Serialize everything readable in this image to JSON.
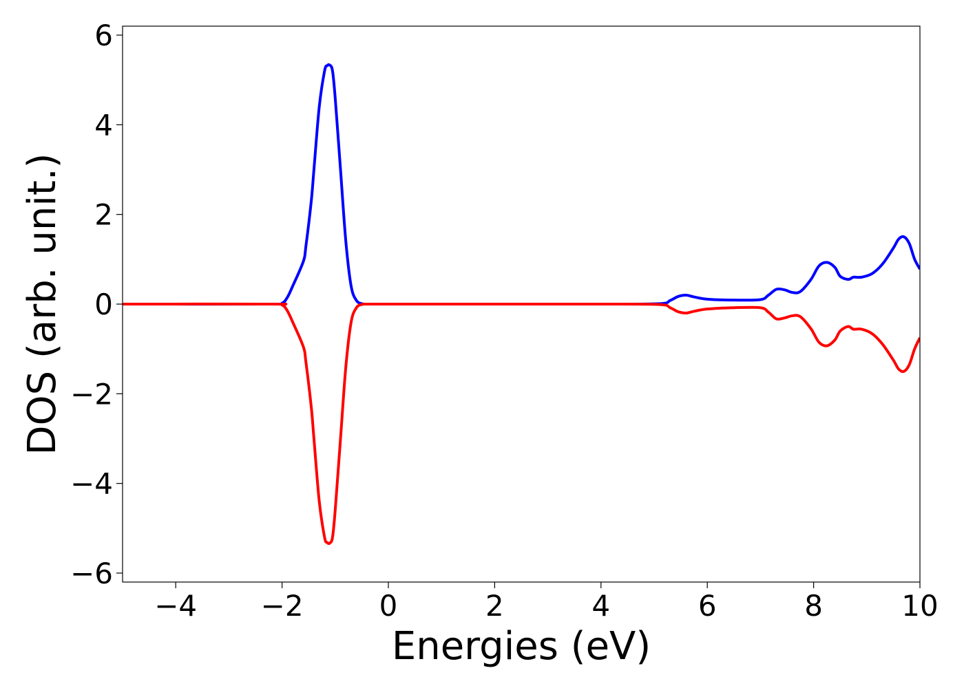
{
  "chart_data": {
    "type": "line",
    "title": "",
    "xlabel": "Energies (eV)",
    "ylabel": "DOS (arb. unit.)",
    "xlim": [
      -5,
      10
    ],
    "ylim": [
      -6.2,
      6.2
    ],
    "xticks": [
      -4,
      -2,
      0,
      2,
      4,
      6,
      8,
      10
    ],
    "yticks": [
      -6,
      -4,
      -2,
      0,
      2,
      4,
      6
    ],
    "xtick_labels": [
      "−4",
      "−2",
      "0",
      "2",
      "4",
      "6",
      "8",
      "10"
    ],
    "ytick_labels": [
      "−6",
      "−4",
      "−2",
      "0",
      "2",
      "4",
      "6"
    ],
    "grid": false,
    "legend": "none",
    "series": [
      {
        "color": "#0000ff",
        "x": [
          -5,
          -2.2,
          -2.0,
          -1.9,
          -1.8,
          -1.6,
          -1.55,
          -1.45,
          -1.4,
          -1.3,
          -1.2,
          -1.15,
          -1.1,
          -1.05,
          -1.0,
          -0.9,
          -0.8,
          -0.7,
          -0.6,
          -0.5,
          -0.4,
          0,
          2,
          4,
          5.1,
          5.3,
          5.45,
          5.6,
          5.75,
          6.0,
          6.5,
          7.0,
          7.15,
          7.3,
          7.45,
          7.6,
          7.75,
          7.95,
          8.1,
          8.25,
          8.4,
          8.5,
          8.65,
          8.75,
          8.9,
          9.1,
          9.3,
          9.5,
          9.6,
          9.7,
          9.8,
          9.9,
          10.0
        ],
        "y": [
          0,
          0,
          0.02,
          0.15,
          0.4,
          0.95,
          1.3,
          2.3,
          3.0,
          4.4,
          5.2,
          5.32,
          5.33,
          5.2,
          4.6,
          3.0,
          1.4,
          0.4,
          0.08,
          0.01,
          0,
          0,
          0,
          0,
          0.01,
          0.08,
          0.17,
          0.2,
          0.16,
          0.11,
          0.09,
          0.1,
          0.2,
          0.33,
          0.32,
          0.26,
          0.28,
          0.55,
          0.85,
          0.93,
          0.82,
          0.62,
          0.55,
          0.6,
          0.6,
          0.68,
          0.9,
          1.25,
          1.45,
          1.5,
          1.35,
          1.0,
          0.78
        ]
      },
      {
        "color": "#ff0000",
        "x": [
          -5,
          -2.2,
          -2.0,
          -1.9,
          -1.8,
          -1.6,
          -1.55,
          -1.45,
          -1.4,
          -1.3,
          -1.2,
          -1.15,
          -1.1,
          -1.05,
          -1.0,
          -0.9,
          -0.8,
          -0.7,
          -0.6,
          -0.5,
          -0.4,
          0,
          2,
          4,
          5.1,
          5.3,
          5.45,
          5.6,
          5.75,
          6.0,
          6.5,
          7.0,
          7.15,
          7.3,
          7.45,
          7.6,
          7.75,
          7.95,
          8.1,
          8.25,
          8.4,
          8.5,
          8.65,
          8.75,
          8.9,
          9.1,
          9.3,
          9.5,
          9.6,
          9.7,
          9.8,
          9.9,
          10.0
        ],
        "y": [
          0,
          0,
          -0.02,
          -0.15,
          -0.4,
          -0.95,
          -1.3,
          -2.3,
          -3.0,
          -4.4,
          -5.2,
          -5.32,
          -5.33,
          -5.2,
          -4.6,
          -3.0,
          -1.4,
          -0.4,
          -0.08,
          -0.01,
          0,
          0,
          0,
          0,
          -0.01,
          -0.08,
          -0.17,
          -0.2,
          -0.16,
          -0.11,
          -0.08,
          -0.08,
          -0.18,
          -0.33,
          -0.31,
          -0.26,
          -0.28,
          -0.55,
          -0.85,
          -0.93,
          -0.8,
          -0.6,
          -0.5,
          -0.56,
          -0.56,
          -0.66,
          -0.9,
          -1.25,
          -1.45,
          -1.5,
          -1.35,
          -1.0,
          -0.75
        ]
      }
    ]
  }
}
